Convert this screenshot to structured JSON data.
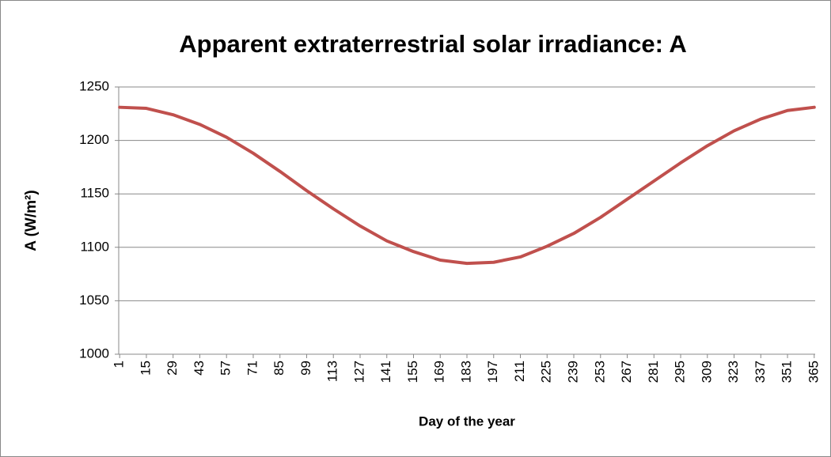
{
  "chart_data": {
    "type": "line",
    "title": "Apparent extraterrestrial solar irradiance: A",
    "x_label": "Day of the year",
    "y_label": "A (W/m²)",
    "x": [
      1,
      15,
      29,
      43,
      57,
      71,
      85,
      99,
      113,
      127,
      141,
      155,
      169,
      183,
      197,
      211,
      225,
      239,
      253,
      267,
      281,
      295,
      309,
      323,
      337,
      351,
      365
    ],
    "series": [
      {
        "name": "A",
        "color": "#c0504d",
        "values": [
          1231,
          1230,
          1224,
          1215,
          1203,
          1188,
          1171,
          1153,
          1136,
          1120,
          1106,
          1096,
          1088,
          1085,
          1086,
          1091,
          1101,
          1113,
          1128,
          1145,
          1162,
          1179,
          1195,
          1209,
          1220,
          1228,
          1231
        ]
      }
    ],
    "xlim": [
      0.5,
      365.5
    ],
    "xticks": [
      1,
      15,
      29,
      43,
      57,
      71,
      85,
      99,
      113,
      127,
      141,
      155,
      169,
      183,
      197,
      211,
      225,
      239,
      253,
      267,
      281,
      295,
      309,
      323,
      337,
      351,
      365
    ],
    "ylim": [
      1000,
      1250
    ],
    "yticks": [
      1000,
      1050,
      1100,
      1150,
      1200,
      1250
    ],
    "grid": true
  }
}
